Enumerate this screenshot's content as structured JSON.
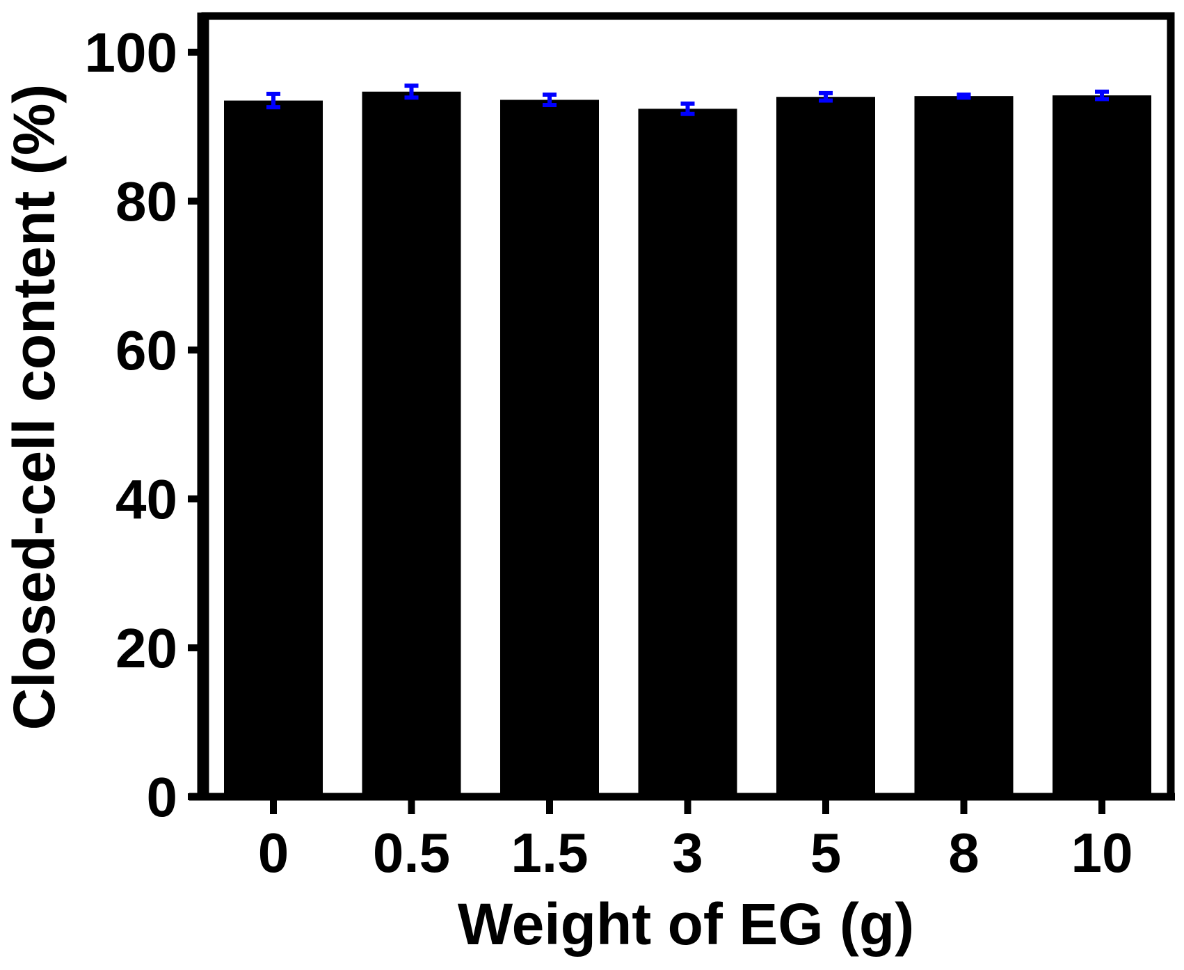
{
  "chart_data": {
    "type": "bar",
    "title": "",
    "xlabel": "Weight of EG (g)",
    "ylabel": "Closed-cell content (%)",
    "categories": [
      "0",
      "0.5",
      "1.5",
      "3",
      "5",
      "8",
      "10"
    ],
    "values": [
      93.5,
      94.7,
      93.6,
      92.4,
      94.0,
      94.1,
      94.2
    ],
    "errors": [
      0.9,
      0.8,
      0.7,
      0.7,
      0.5,
      0.2,
      0.5
    ],
    "ylim": [
      0,
      105
    ],
    "yticks": [
      "0",
      "20",
      "40",
      "60",
      "80",
      "100"
    ],
    "ytick_values": [
      0,
      20,
      40,
      60,
      80,
      100
    ],
    "grid": false,
    "legend": "none",
    "colors": {
      "bar": "#000000",
      "error_bar": "#0000ff",
      "axis": "#000000",
      "background": "#ffffff"
    }
  }
}
